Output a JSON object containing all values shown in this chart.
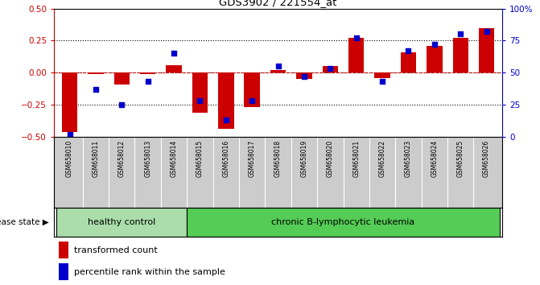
{
  "title": "GDS3902 / 221554_at",
  "samples": [
    "GSM658010",
    "GSM658011",
    "GSM658012",
    "GSM658013",
    "GSM658014",
    "GSM658015",
    "GSM658016",
    "GSM658017",
    "GSM658018",
    "GSM658019",
    "GSM658020",
    "GSM658021",
    "GSM658022",
    "GSM658023",
    "GSM658024",
    "GSM658025",
    "GSM658026"
  ],
  "red_bars": [
    -0.46,
    -0.01,
    -0.09,
    -0.01,
    0.06,
    -0.31,
    -0.44,
    -0.27,
    0.02,
    -0.05,
    0.05,
    0.27,
    -0.04,
    0.16,
    0.21,
    0.27,
    0.35
  ],
  "blue_dots": [
    2,
    37,
    25,
    43,
    65,
    28,
    13,
    28,
    55,
    47,
    53,
    77,
    43,
    67,
    72,
    80,
    82
  ],
  "ylim_left": [
    -0.5,
    0.5
  ],
  "ylim_right": [
    0,
    100
  ],
  "left_yticks": [
    -0.5,
    -0.25,
    0,
    0.25,
    0.5
  ],
  "right_yticks": [
    0,
    25,
    50,
    75,
    100
  ],
  "dotted_lines": [
    -0.25,
    0.0,
    0.25
  ],
  "bar_color": "#cc0000",
  "dot_color": "#0000cc",
  "healthy_color": "#aaddaa",
  "leukemia_color": "#55cc55",
  "healthy_label": "healthy control",
  "leukemia_label": "chronic B-lymphocytic leukemia",
  "healthy_count": 5,
  "leukemia_count": 12,
  "legend_bar_label": "transformed count",
  "legend_dot_label": "percentile rank within the sample",
  "disease_state_label": "disease state",
  "left_axis_color": "#cc0000",
  "right_axis_color": "#0000cc",
  "xtick_bg": "#cccccc",
  "fig_bg": "#ffffff"
}
